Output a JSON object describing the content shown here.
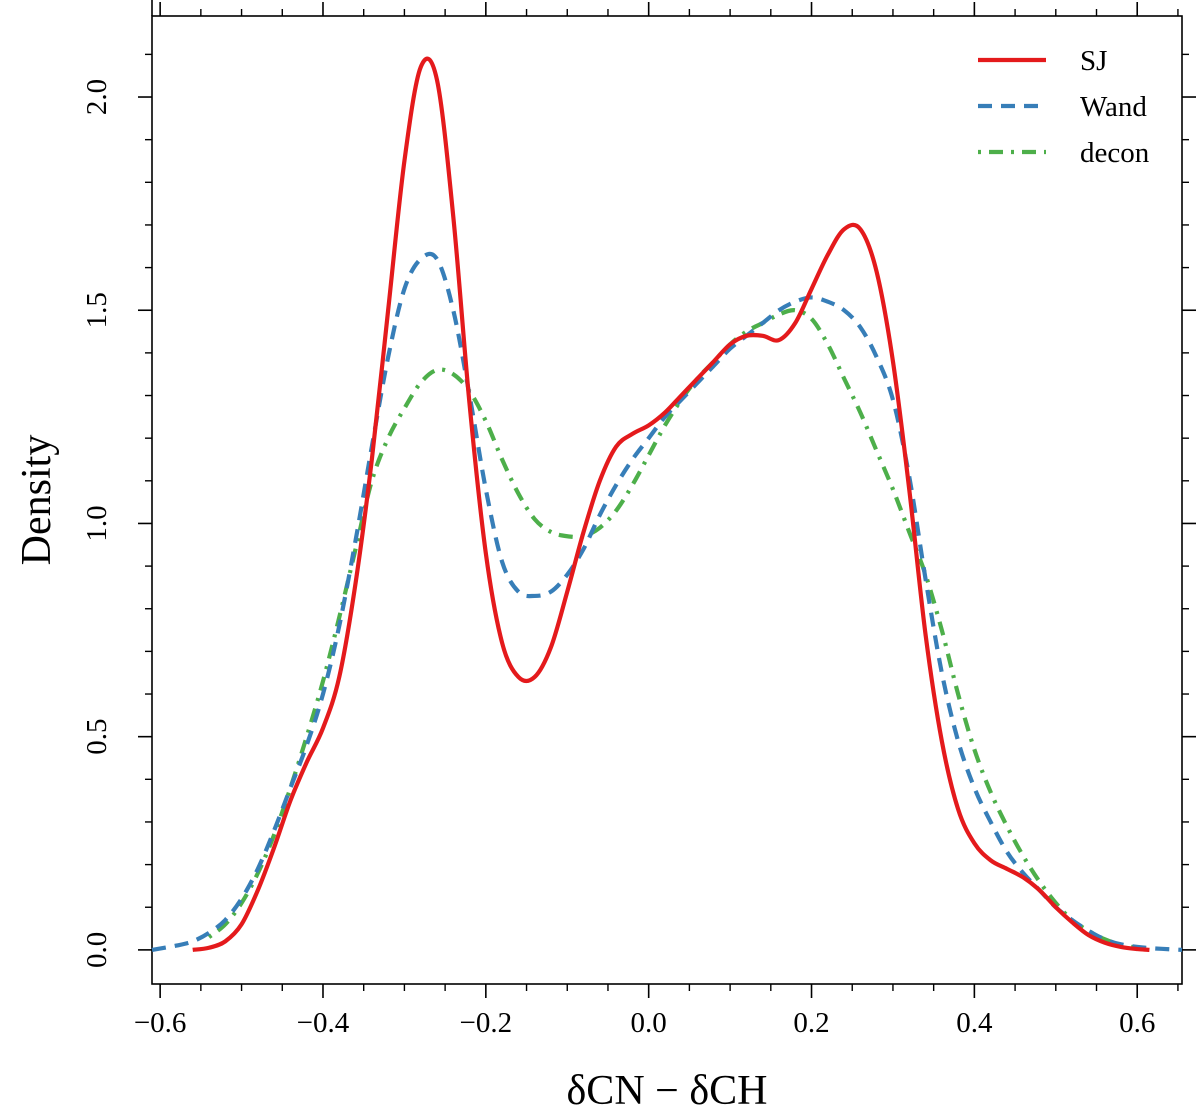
{
  "chart_data": {
    "type": "line",
    "title": "",
    "xlabel": "δCN − δCH",
    "ylabel": "Density",
    "xlim": [
      -0.61,
      0.655
    ],
    "ylim": [
      -0.08,
      2.19
    ],
    "grid": false,
    "legend_position": "top-right",
    "x_ticks": [
      -0.6,
      -0.4,
      -0.2,
      0.0,
      0.2,
      0.4,
      0.6
    ],
    "x_tick_labels": [
      "−0.6",
      "−0.4",
      "−0.2",
      "0.0",
      "0.2",
      "0.4",
      "0.6"
    ],
    "x_minor_ticks": [
      -0.55,
      -0.5,
      -0.45,
      -0.35,
      -0.3,
      -0.25,
      -0.15,
      -0.1,
      -0.05,
      0.05,
      0.1,
      0.15,
      0.25,
      0.3,
      0.35,
      0.45,
      0.5,
      0.55,
      0.65
    ],
    "y_ticks": [
      0.0,
      0.5,
      1.0,
      1.5,
      2.0
    ],
    "y_tick_labels": [
      "0.0",
      "0.5",
      "1.0",
      "1.5",
      "2.0"
    ],
    "y_minor_ticks": [
      0.1,
      0.2,
      0.3,
      0.4,
      0.6,
      0.7,
      0.8,
      0.9,
      1.1,
      1.2,
      1.3,
      1.4,
      1.6,
      1.7,
      1.8,
      1.9,
      2.1
    ],
    "series": [
      {
        "name": "SJ",
        "color": "#e41a1c",
        "style": "solid",
        "x": [
          -0.56,
          -0.54,
          -0.52,
          -0.5,
          -0.48,
          -0.46,
          -0.44,
          -0.42,
          -0.4,
          -0.38,
          -0.36,
          -0.34,
          -0.32,
          -0.3,
          -0.28,
          -0.26,
          -0.24,
          -0.22,
          -0.2,
          -0.18,
          -0.16,
          -0.14,
          -0.12,
          -0.1,
          -0.08,
          -0.06,
          -0.04,
          -0.02,
          0.0,
          0.02,
          0.04,
          0.06,
          0.08,
          0.1,
          0.12,
          0.14,
          0.16,
          0.18,
          0.2,
          0.22,
          0.24,
          0.26,
          0.28,
          0.3,
          0.32,
          0.34,
          0.36,
          0.38,
          0.4,
          0.42,
          0.44,
          0.46,
          0.48,
          0.5,
          0.52,
          0.54,
          0.56,
          0.58,
          0.6,
          0.615
        ],
        "y": [
          0.0,
          0.005,
          0.02,
          0.06,
          0.14,
          0.24,
          0.35,
          0.44,
          0.52,
          0.64,
          0.86,
          1.15,
          1.5,
          1.85,
          2.07,
          2.04,
          1.72,
          1.28,
          0.93,
          0.72,
          0.64,
          0.64,
          0.71,
          0.84,
          0.98,
          1.1,
          1.18,
          1.21,
          1.23,
          1.26,
          1.3,
          1.34,
          1.38,
          1.42,
          1.44,
          1.44,
          1.43,
          1.47,
          1.55,
          1.63,
          1.69,
          1.69,
          1.59,
          1.38,
          1.08,
          0.74,
          0.49,
          0.33,
          0.25,
          0.21,
          0.19,
          0.17,
          0.14,
          0.1,
          0.065,
          0.035,
          0.017,
          0.007,
          0.002,
          0.0
        ]
      },
      {
        "name": "Wand",
        "color": "#377eb8",
        "style": "dashed",
        "x": [
          -0.61,
          -0.58,
          -0.56,
          -0.54,
          -0.52,
          -0.5,
          -0.48,
          -0.46,
          -0.44,
          -0.42,
          -0.4,
          -0.38,
          -0.36,
          -0.34,
          -0.32,
          -0.3,
          -0.28,
          -0.26,
          -0.24,
          -0.22,
          -0.2,
          -0.18,
          -0.16,
          -0.14,
          -0.12,
          -0.1,
          -0.08,
          -0.06,
          -0.04,
          -0.02,
          0.0,
          0.02,
          0.04,
          0.06,
          0.08,
          0.1,
          0.12,
          0.14,
          0.16,
          0.18,
          0.2,
          0.22,
          0.24,
          0.26,
          0.28,
          0.3,
          0.32,
          0.34,
          0.36,
          0.38,
          0.4,
          0.42,
          0.44,
          0.46,
          0.48,
          0.5,
          0.52,
          0.54,
          0.56,
          0.58,
          0.61,
          0.655
        ],
        "y": [
          0.0,
          0.01,
          0.02,
          0.04,
          0.07,
          0.12,
          0.19,
          0.28,
          0.38,
          0.48,
          0.6,
          0.76,
          0.96,
          1.18,
          1.39,
          1.55,
          1.62,
          1.62,
          1.5,
          1.3,
          1.08,
          0.91,
          0.84,
          0.83,
          0.84,
          0.88,
          0.94,
          1.02,
          1.09,
          1.15,
          1.2,
          1.25,
          1.29,
          1.33,
          1.37,
          1.41,
          1.44,
          1.47,
          1.5,
          1.52,
          1.53,
          1.52,
          1.5,
          1.46,
          1.39,
          1.29,
          1.11,
          0.87,
          0.65,
          0.49,
          0.38,
          0.3,
          0.23,
          0.18,
          0.14,
          0.1,
          0.07,
          0.045,
          0.025,
          0.013,
          0.005,
          0.0
        ]
      },
      {
        "name": "decon",
        "color": "#4daf4a",
        "style": "dashdot",
        "x": [
          -0.54,
          -0.52,
          -0.5,
          -0.48,
          -0.46,
          -0.44,
          -0.42,
          -0.4,
          -0.38,
          -0.36,
          -0.34,
          -0.32,
          -0.3,
          -0.28,
          -0.26,
          -0.24,
          -0.22,
          -0.2,
          -0.18,
          -0.16,
          -0.14,
          -0.12,
          -0.1,
          -0.08,
          -0.06,
          -0.04,
          -0.02,
          0.0,
          0.02,
          0.04,
          0.06,
          0.08,
          0.1,
          0.12,
          0.14,
          0.16,
          0.18,
          0.2,
          0.22,
          0.24,
          0.26,
          0.28,
          0.3,
          0.32,
          0.34,
          0.36,
          0.38,
          0.4,
          0.42,
          0.44,
          0.46,
          0.48,
          0.5,
          0.52,
          0.54,
          0.56,
          0.58,
          0.6,
          0.615
        ],
        "y": [
          0.03,
          0.06,
          0.11,
          0.18,
          0.27,
          0.38,
          0.5,
          0.63,
          0.78,
          0.94,
          1.1,
          1.2,
          1.27,
          1.33,
          1.36,
          1.35,
          1.31,
          1.24,
          1.15,
          1.07,
          1.01,
          0.98,
          0.97,
          0.97,
          0.99,
          1.03,
          1.09,
          1.16,
          1.23,
          1.29,
          1.34,
          1.38,
          1.42,
          1.45,
          1.47,
          1.49,
          1.5,
          1.48,
          1.42,
          1.34,
          1.26,
          1.17,
          1.08,
          0.98,
          0.88,
          0.75,
          0.6,
          0.47,
          0.37,
          0.29,
          0.22,
          0.16,
          0.11,
          0.07,
          0.045,
          0.025,
          0.012,
          0.005,
          0.002
        ]
      }
    ]
  }
}
